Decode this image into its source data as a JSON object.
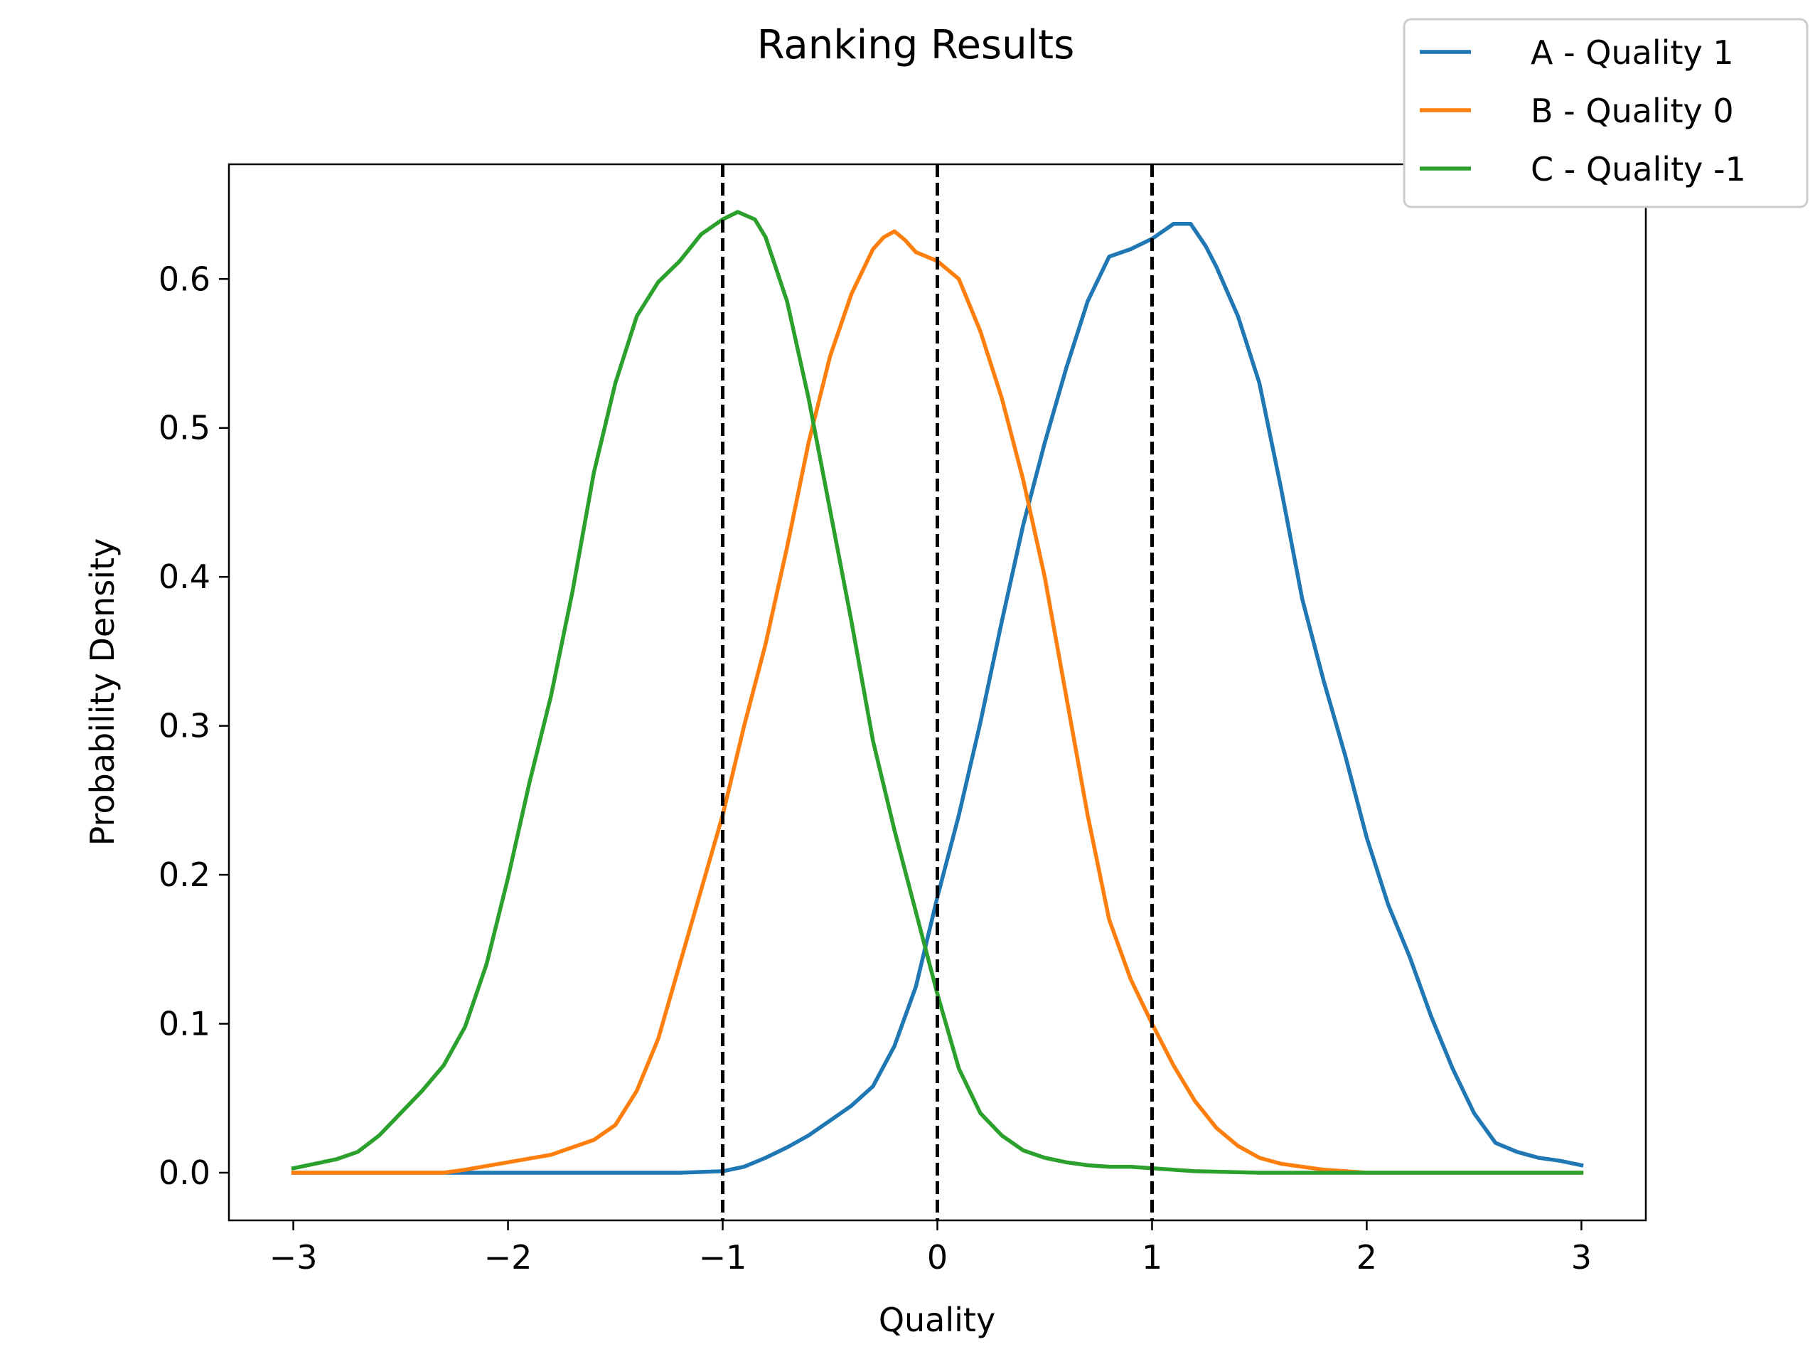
{
  "chart_data": {
    "type": "line",
    "title": "Ranking Results",
    "xlabel": "Quality",
    "ylabel": "Probability Density",
    "xlim": [
      -3.3,
      3.3
    ],
    "ylim": [
      -0.032,
      0.677
    ],
    "x_ticks": [
      "−3",
      "−2",
      "−1",
      "0",
      "1",
      "2",
      "3"
    ],
    "x_tick_values": [
      -3,
      -2,
      -1,
      0,
      1,
      2,
      3
    ],
    "y_ticks": [
      "0.0",
      "0.1",
      "0.2",
      "0.3",
      "0.4",
      "0.5",
      "0.6"
    ],
    "y_tick_values": [
      0.0,
      0.1,
      0.2,
      0.3,
      0.4,
      0.5,
      0.6
    ],
    "grid": false,
    "legend_position": "top-right",
    "vertical_lines": [
      -1,
      0,
      1
    ],
    "vertical_line_color": "#000000",
    "series": [
      {
        "name": "A - Quality 1",
        "color": "#1f77b4",
        "x": [
          -3,
          -2.5,
          -2,
          -1.5,
          -1.2,
          -1.0,
          -0.9,
          -0.8,
          -0.7,
          -0.6,
          -0.5,
          -0.4,
          -0.3,
          -0.2,
          -0.1,
          0.0,
          0.1,
          0.2,
          0.3,
          0.4,
          0.5,
          0.6,
          0.7,
          0.8,
          0.9,
          1.0,
          1.1,
          1.18,
          1.25,
          1.3,
          1.4,
          1.5,
          1.6,
          1.7,
          1.8,
          1.9,
          2.0,
          2.1,
          2.2,
          2.3,
          2.4,
          2.5,
          2.6,
          2.7,
          2.8,
          2.9,
          3.0
        ],
        "y": [
          0.0,
          0.0,
          0.0,
          0.0,
          0.0,
          0.001,
          0.004,
          0.01,
          0.017,
          0.025,
          0.035,
          0.045,
          0.058,
          0.085,
          0.125,
          0.185,
          0.24,
          0.302,
          0.37,
          0.435,
          0.49,
          0.54,
          0.585,
          0.615,
          0.62,
          0.627,
          0.637,
          0.637,
          0.622,
          0.608,
          0.575,
          0.53,
          0.46,
          0.385,
          0.33,
          0.28,
          0.225,
          0.18,
          0.145,
          0.105,
          0.07,
          0.04,
          0.02,
          0.014,
          0.01,
          0.008,
          0.005
        ]
      },
      {
        "name": "B - Quality 0",
        "color": "#ff7f0e",
        "x": [
          -3,
          -2.5,
          -2.3,
          -2.2,
          -2.0,
          -1.8,
          -1.6,
          -1.5,
          -1.4,
          -1.3,
          -1.2,
          -1.1,
          -1.0,
          -0.9,
          -0.8,
          -0.7,
          -0.6,
          -0.5,
          -0.4,
          -0.3,
          -0.25,
          -0.2,
          -0.15,
          -0.1,
          0.0,
          0.1,
          0.2,
          0.3,
          0.4,
          0.5,
          0.6,
          0.7,
          0.8,
          0.9,
          1.0,
          1.1,
          1.2,
          1.3,
          1.4,
          1.5,
          1.6,
          1.8,
          2.0,
          2.5,
          3.0
        ],
        "y": [
          0.0,
          0.0,
          0.0,
          0.002,
          0.007,
          0.012,
          0.022,
          0.032,
          0.055,
          0.09,
          0.14,
          0.19,
          0.24,
          0.3,
          0.355,
          0.42,
          0.49,
          0.548,
          0.59,
          0.62,
          0.628,
          0.632,
          0.626,
          0.618,
          0.612,
          0.6,
          0.565,
          0.52,
          0.465,
          0.4,
          0.32,
          0.24,
          0.17,
          0.13,
          0.1,
          0.072,
          0.048,
          0.03,
          0.018,
          0.01,
          0.006,
          0.002,
          0.0,
          0.0,
          0.0
        ]
      },
      {
        "name": "C - Quality -1",
        "color": "#2ca02c",
        "x": [
          -3.0,
          -2.9,
          -2.8,
          -2.7,
          -2.6,
          -2.5,
          -2.4,
          -2.3,
          -2.2,
          -2.1,
          -2.0,
          -1.9,
          -1.8,
          -1.7,
          -1.6,
          -1.5,
          -1.4,
          -1.3,
          -1.2,
          -1.1,
          -1.0,
          -0.93,
          -0.85,
          -0.8,
          -0.7,
          -0.6,
          -0.5,
          -0.4,
          -0.3,
          -0.2,
          -0.1,
          0.0,
          0.1,
          0.2,
          0.3,
          0.4,
          0.5,
          0.6,
          0.7,
          0.8,
          0.9,
          1.0,
          1.2,
          1.5,
          2.0,
          3.0
        ],
        "y": [
          0.003,
          0.006,
          0.009,
          0.014,
          0.025,
          0.04,
          0.055,
          0.072,
          0.098,
          0.14,
          0.198,
          0.262,
          0.32,
          0.39,
          0.47,
          0.53,
          0.575,
          0.598,
          0.612,
          0.63,
          0.64,
          0.645,
          0.64,
          0.628,
          0.585,
          0.52,
          0.445,
          0.37,
          0.29,
          0.23,
          0.175,
          0.12,
          0.07,
          0.04,
          0.025,
          0.015,
          0.01,
          0.007,
          0.005,
          0.004,
          0.004,
          0.003,
          0.001,
          0.0,
          0.0,
          0.0
        ]
      }
    ]
  }
}
